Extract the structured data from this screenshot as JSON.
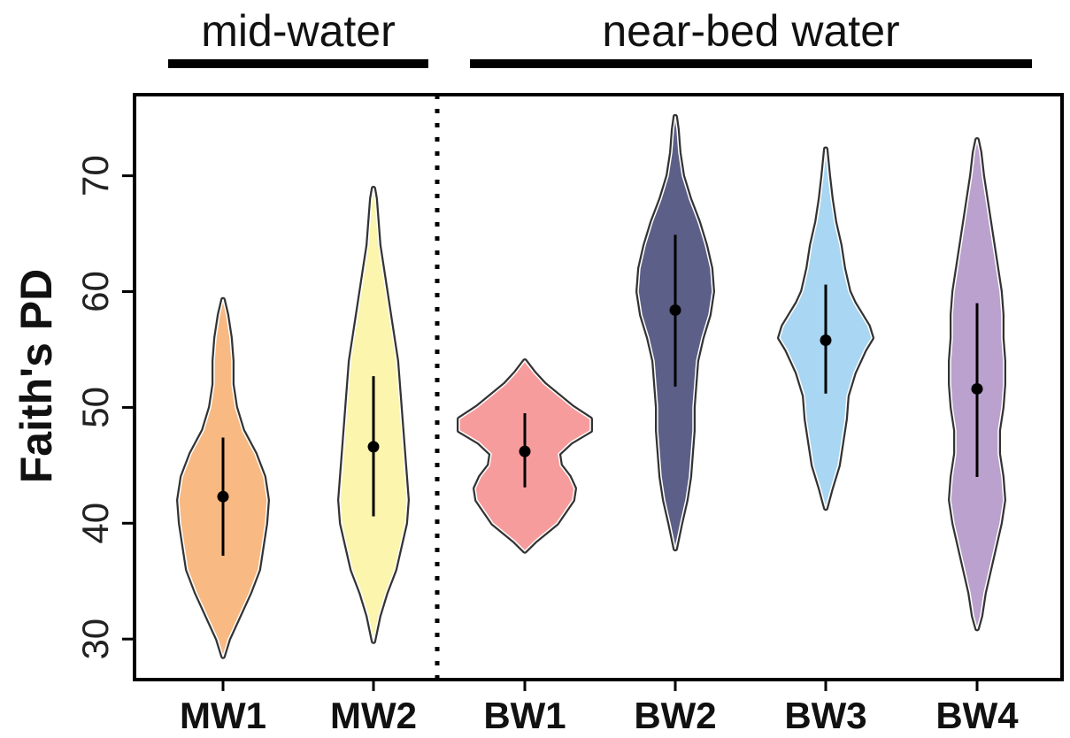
{
  "chart_data": {
    "type": "violin",
    "title": "",
    "xlabel": "",
    "ylabel": "Faith's PD",
    "ylim": [
      26.5,
      77
    ],
    "yticks": [
      30,
      40,
      50,
      60,
      70
    ],
    "grid": false,
    "legend": "none",
    "groups": [
      {
        "label": "mid-water",
        "members": [
          "MW1",
          "MW2"
        ]
      },
      {
        "label": "near-bed water",
        "members": [
          "BW1",
          "BW2",
          "BW3",
          "BW4"
        ]
      }
    ],
    "divider_after": "MW2",
    "categories": [
      "MW1",
      "MW2",
      "BW1",
      "BW2",
      "BW3",
      "BW4"
    ],
    "series": [
      {
        "category": "MW1",
        "color": "#F8B982",
        "min": 28.5,
        "max": 59.3,
        "q1": 37.2,
        "median": 42.3,
        "q3": 47.4
      },
      {
        "category": "MW2",
        "color": "#FBF5AE",
        "min": 29.8,
        "max": 68.9,
        "q1": 40.6,
        "median": 46.6,
        "q3": 52.7
      },
      {
        "category": "BW1",
        "color": "#F79C9C",
        "min": 37.6,
        "max": 54.0,
        "q1": 43.1,
        "median": 46.2,
        "q3": 49.5
      },
      {
        "category": "BW2",
        "color": "#5C6088",
        "min": 37.8,
        "max": 75.1,
        "q1": 51.8,
        "median": 58.4,
        "q3": 64.9
      },
      {
        "category": "BW3",
        "color": "#A8D6F3",
        "min": 41.3,
        "max": 72.3,
        "q1": 51.2,
        "median": 55.8,
        "q3": 60.6
      },
      {
        "category": "BW4",
        "color": "#BAA1CE",
        "min": 30.9,
        "max": 73.1,
        "q1": 44.0,
        "median": 51.6,
        "q3": 59.0
      }
    ]
  }
}
